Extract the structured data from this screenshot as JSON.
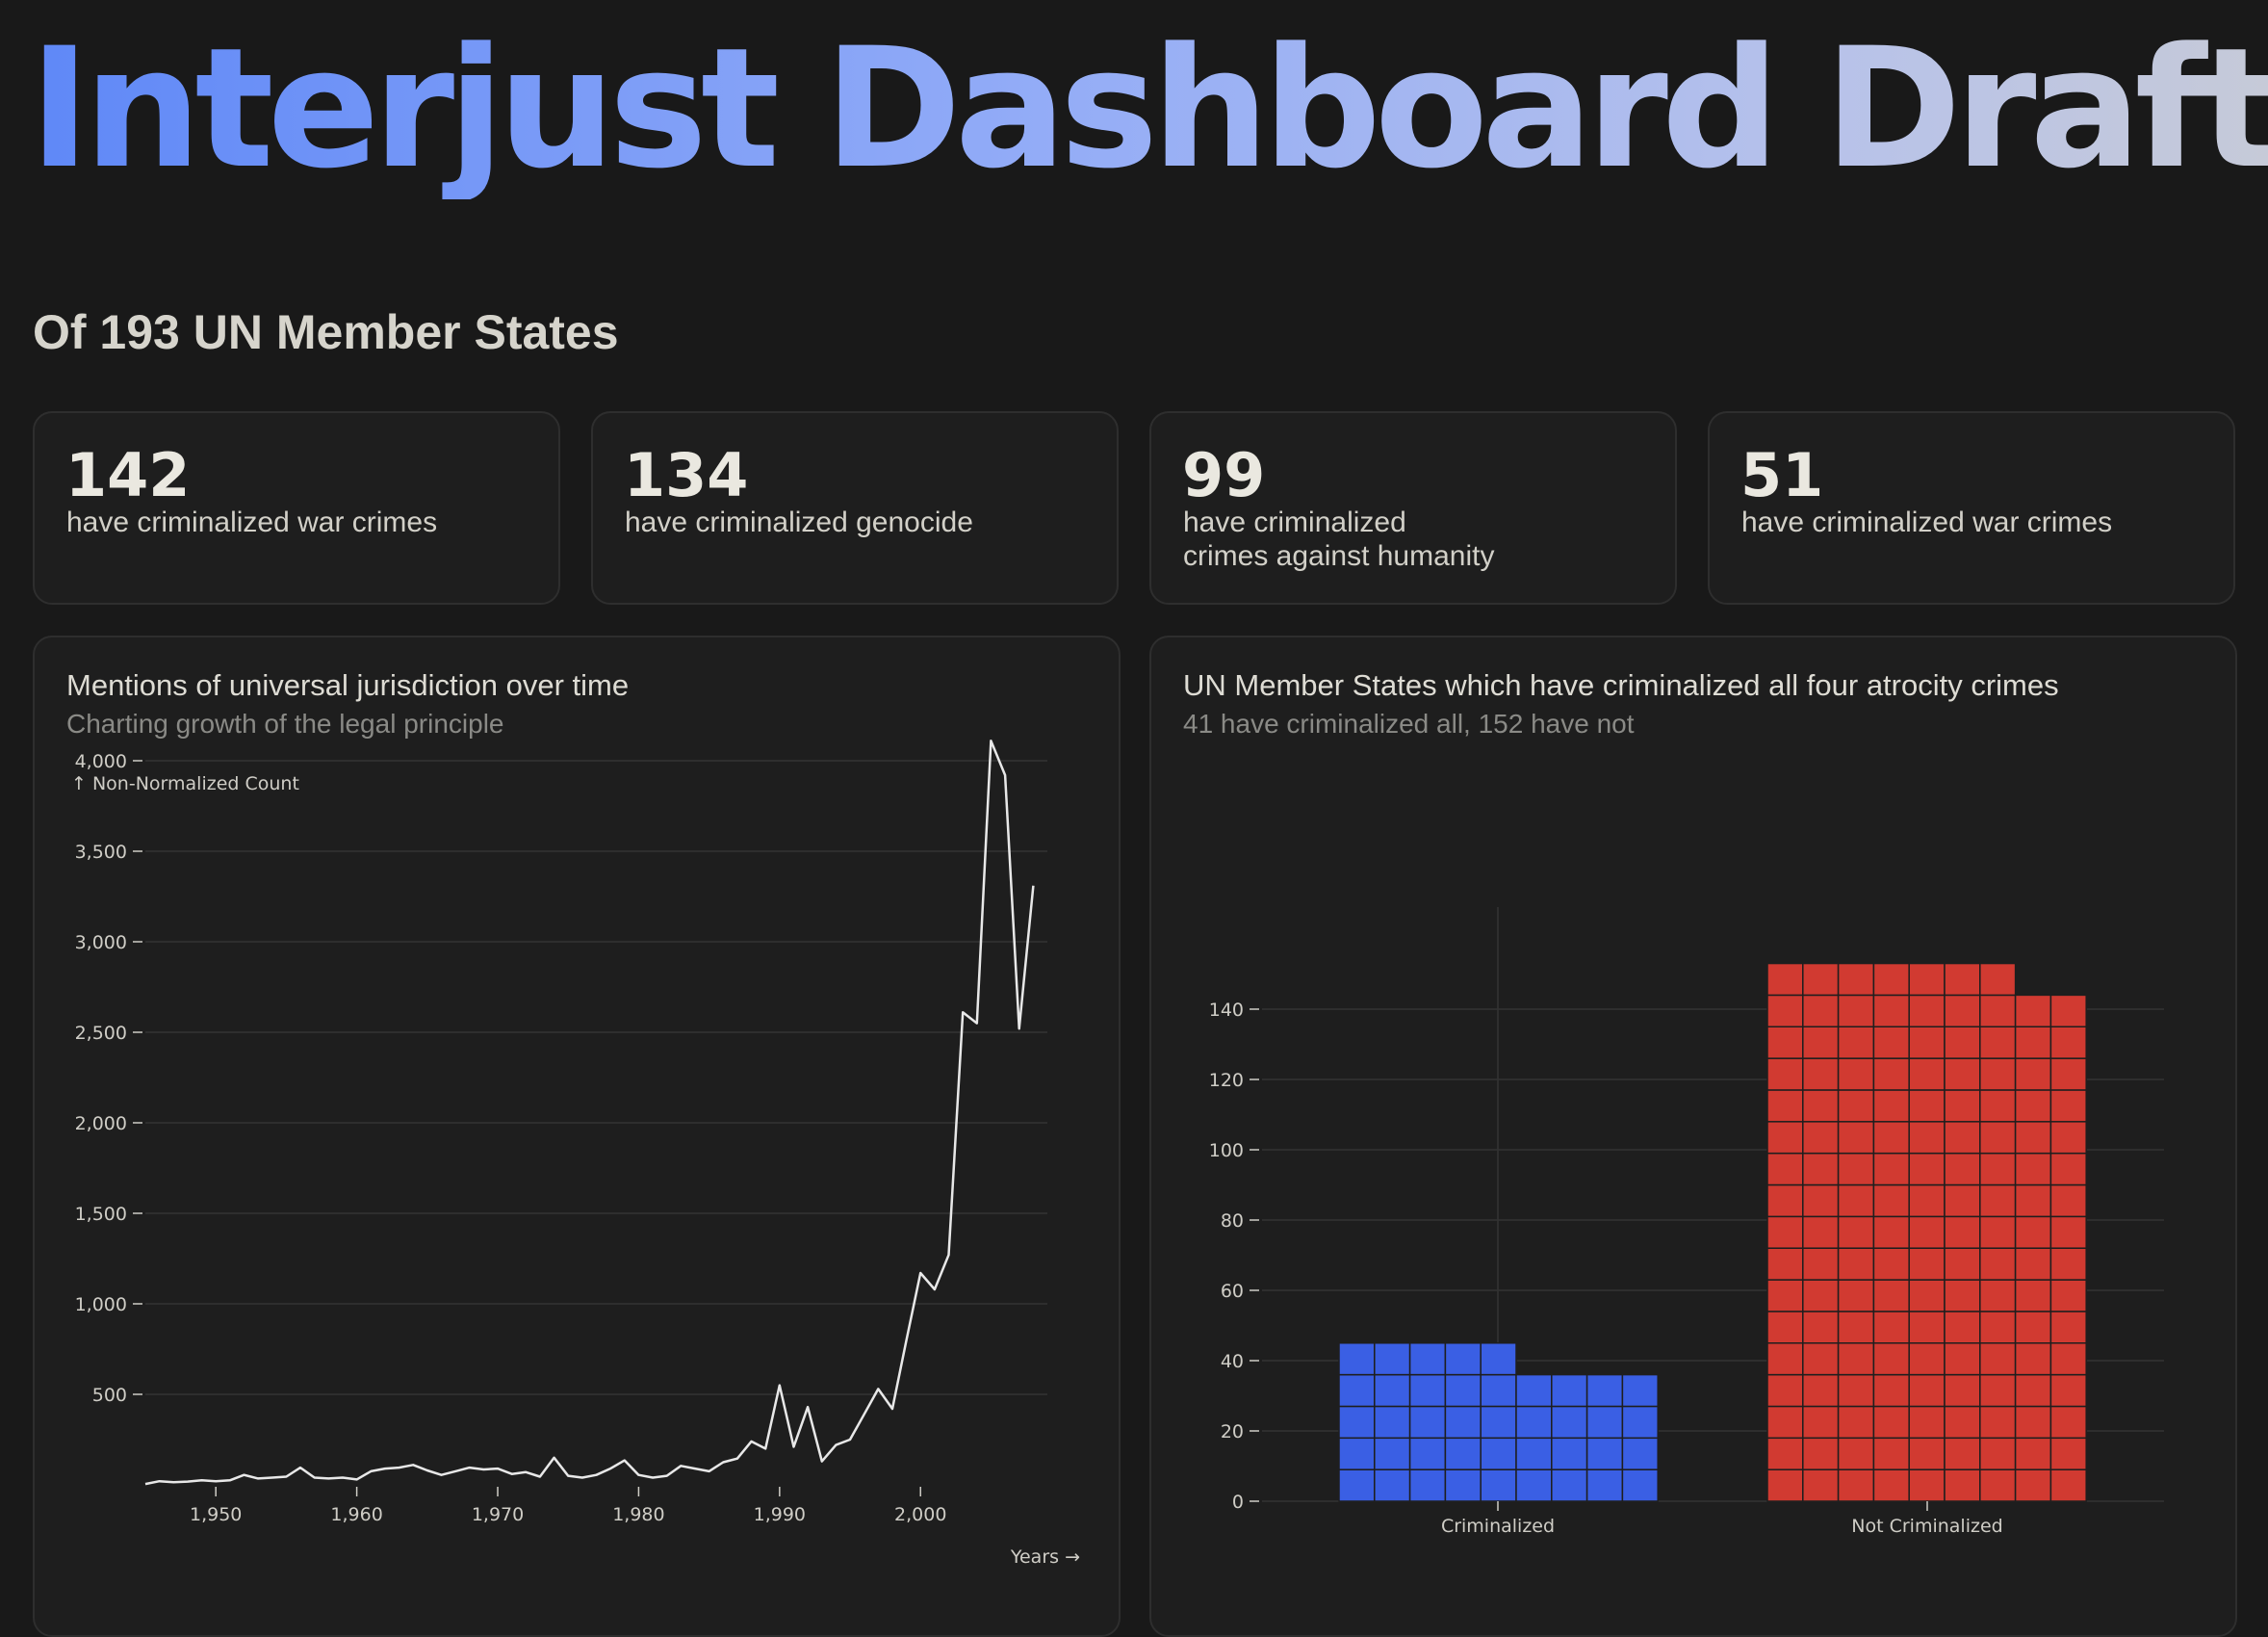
{
  "header": {
    "title": "Interjust Dashboard Draft",
    "subtitle": "Of 193 UN Member States"
  },
  "stats": [
    {
      "value": "142",
      "label": "have criminalized war crimes"
    },
    {
      "value": "134",
      "label": "have criminalized genocide"
    },
    {
      "value": "99",
      "label": "have criminalized\ncrimes against humanity"
    },
    {
      "value": "51",
      "label": "have criminalized war crimes"
    }
  ],
  "colors": {
    "background": "#191919",
    "card": "#1e1e1e",
    "line": "#e8e8e8",
    "criminalized": "#3a5fe4",
    "not_criminalized": "#d13a31"
  },
  "chart_data": [
    {
      "type": "line",
      "title": "Mentions of universal jurisdiction over time",
      "subtitle": "Charting growth of the legal principle",
      "ylabel": "↑ Non-Normalized Count",
      "xlabel": "Years →",
      "xlim": [
        1945,
        2009
      ],
      "ylim": [
        0,
        4000
      ],
      "x_ticks": [
        1950,
        1960,
        1970,
        1980,
        1990,
        2000
      ],
      "y_ticks": [
        500,
        1000,
        1500,
        2000,
        2500,
        3000,
        3500,
        4000
      ],
      "x_tick_labels": [
        "1,950",
        "1,960",
        "1,970",
        "1,980",
        "1,990",
        "2,000"
      ],
      "y_tick_labels": [
        "500",
        "1,000",
        "1,500",
        "2,000",
        "2,500",
        "3,000",
        "3,500",
        "4,000"
      ],
      "grid": "horizontal",
      "x": [
        1945,
        1946,
        1947,
        1948,
        1949,
        1950,
        1951,
        1952,
        1953,
        1954,
        1955,
        1956,
        1957,
        1958,
        1959,
        1960,
        1961,
        1962,
        1963,
        1964,
        1965,
        1966,
        1967,
        1968,
        1969,
        1970,
        1971,
        1972,
        1973,
        1974,
        1975,
        1976,
        1977,
        1978,
        1979,
        1980,
        1981,
        1982,
        1983,
        1984,
        1985,
        1986,
        1987,
        1988,
        1989,
        1990,
        1991,
        1992,
        1993,
        1994,
        1995,
        1996,
        1997,
        1998,
        1999,
        2000,
        2001,
        2002,
        2003,
        2004,
        2005,
        2006,
        2007,
        2008
      ],
      "y": [
        5,
        20,
        15,
        18,
        25,
        20,
        25,
        55,
        35,
        40,
        45,
        95,
        40,
        35,
        40,
        30,
        75,
        90,
        95,
        110,
        80,
        55,
        75,
        95,
        85,
        90,
        60,
        70,
        45,
        150,
        50,
        40,
        55,
        90,
        135,
        55,
        40,
        50,
        105,
        90,
        75,
        125,
        145,
        240,
        200,
        550,
        210,
        430,
        130,
        220,
        250,
        390,
        530,
        420,
        800,
        1170,
        1080,
        1270,
        2610,
        2550,
        4110,
        3920,
        2520,
        3310
      ]
    },
    {
      "type": "bar",
      "title": "UN Member States which have criminalized all four atrocity crimes",
      "subtitle": "41 have criminalized all, 152 have not",
      "categories": [
        "Criminalized",
        "Not Criminalized"
      ],
      "values": [
        41,
        152
      ],
      "ylim": [
        0,
        152
      ],
      "y_ticks": [
        0,
        20,
        40,
        60,
        80,
        100,
        120,
        140
      ],
      "y_tick_labels": [
        "0",
        "20",
        "40",
        "60",
        "80",
        "100",
        "120",
        "140"
      ],
      "grid": "both",
      "cell_units": 9,
      "column_units": [
        [
          45,
          45,
          45,
          45,
          45,
          36,
          36,
          36,
          36
        ],
        [
          153,
          153,
          153,
          153,
          153,
          153,
          153,
          144,
          144
        ]
      ]
    }
  ]
}
